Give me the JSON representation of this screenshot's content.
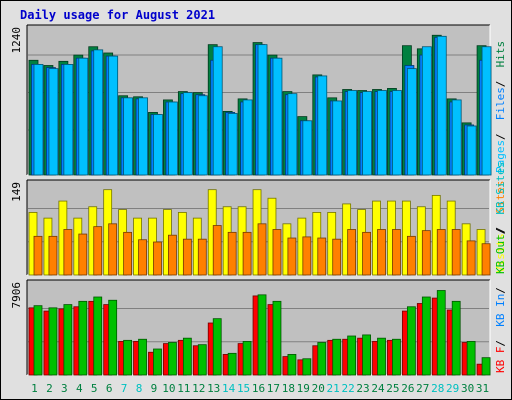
{
  "title": "Daily usage for August 2021",
  "colors": {
    "pages": "#00c0ff",
    "files": "#0080ff",
    "hits": "#008040",
    "visits": "#ffff00",
    "sites": "#ff8000",
    "kb_in": "#00c000",
    "kb_out": "#ff0000",
    "day_normal": "#008040",
    "day_weekend": "#00c0c0",
    "panel_bg": "#c0c0c0",
    "outer_bg": "#e0e0e0"
  },
  "chart_data": [
    {
      "type": "bar",
      "ymax_label": "1240",
      "legend": [
        {
          "text": "Pages",
          "color": "#00c0ff"
        },
        {
          "text": "Files",
          "color": "#0080ff"
        },
        {
          "text": "Hits",
          "color": "#008040"
        }
      ],
      "categories": [
        "1",
        "2",
        "3",
        "4",
        "5",
        "6",
        "7",
        "8",
        "9",
        "10",
        "11",
        "12",
        "13",
        "14",
        "15",
        "16",
        "17",
        "18",
        "19",
        "20",
        "21",
        "22",
        "23",
        "24",
        "25",
        "26",
        "27",
        "28",
        "29",
        "30",
        "31"
      ],
      "series": [
        {
          "name": "Hits",
          "values": [
            1100,
            1050,
            1090,
            1150,
            1230,
            1170,
            760,
            750,
            600,
            720,
            800,
            790,
            1250,
            610,
            730,
            1270,
            1150,
            800,
            560,
            960,
            740,
            820,
            810,
            820,
            830,
            1240,
            1210,
            1340,
            730,
            500,
            1240
          ]
        },
        {
          "name": "Files",
          "values": [
            1060,
            1030,
            1060,
            1120,
            1190,
            1140,
            740,
            730,
            580,
            700,
            780,
            770,
            1100,
            600,
            700,
            1250,
            1120,
            770,
            520,
            940,
            710,
            800,
            790,
            800,
            800,
            1050,
            1150,
            1320,
            700,
            480,
            1100
          ]
        },
        {
          "name": "Pages",
          "values": [
            1060,
            1020,
            1060,
            1120,
            1200,
            1140,
            740,
            740,
            580,
            700,
            790,
            760,
            1230,
            590,
            720,
            1250,
            1120,
            780,
            520,
            950,
            710,
            810,
            800,
            810,
            810,
            1020,
            1230,
            1330,
            720,
            470,
            1230
          ]
        }
      ]
    },
    {
      "type": "bar",
      "ymax_label": "149",
      "legend": [
        {
          "text": "Visits",
          "color": "#ffff00"
        },
        {
          "text": "Sites",
          "color": "#ff8000"
        }
      ],
      "categories": [
        "1",
        "2",
        "3",
        "4",
        "5",
        "6",
        "7",
        "8",
        "9",
        "10",
        "11",
        "12",
        "13",
        "14",
        "15",
        "16",
        "17",
        "18",
        "19",
        "20",
        "21",
        "22",
        "23",
        "24",
        "25",
        "26",
        "27",
        "28",
        "29",
        "30",
        "31"
      ],
      "series": [
        {
          "name": "Visits",
          "values": [
            110,
            100,
            130,
            100,
            120,
            150,
            115,
            100,
            100,
            115,
            110,
            100,
            150,
            120,
            120,
            150,
            135,
            90,
            100,
            110,
            110,
            125,
            115,
            130,
            130,
            130,
            120,
            140,
            130,
            90,
            80
          ]
        },
        {
          "name": "Sites",
          "values": [
            68,
            68,
            80,
            72,
            85,
            90,
            75,
            62,
            58,
            70,
            63,
            63,
            87,
            75,
            75,
            90,
            80,
            65,
            67,
            65,
            63,
            80,
            75,
            80,
            80,
            68,
            78,
            80,
            80,
            60,
            55
          ]
        }
      ]
    },
    {
      "type": "bar",
      "ymax_label": "7906",
      "legend": [
        {
          "text": "KB F",
          "color": "#ff0000"
        },
        {
          "text": "KB In",
          "color": "#0080ff"
        },
        {
          "text": "KB Out",
          "color": "#00c000"
        },
        {
          "text": "KB Sites",
          "color": "#00c0c0"
        }
      ],
      "categories": [
        "1",
        "2",
        "3",
        "4",
        "5",
        "6",
        "7",
        "8",
        "9",
        "10",
        "11",
        "12",
        "13",
        "14",
        "15",
        "16",
        "17",
        "18",
        "19",
        "20",
        "21",
        "22",
        "23",
        "24",
        "25",
        "26",
        "27",
        "28",
        "29",
        "30",
        "31"
      ],
      "series": [
        {
          "name": "KB F",
          "values": [
            6200,
            5900,
            6100,
            6300,
            6800,
            6500,
            3100,
            3100,
            2100,
            2900,
            3200,
            2700,
            4800,
            1900,
            2900,
            7300,
            6500,
            1700,
            1400,
            2700,
            3200,
            3300,
            3400,
            3100,
            3200,
            5900,
            6600,
            7100,
            6000,
            3000,
            1000
          ]
        },
        {
          "name": "KB Out",
          "values": [
            6400,
            6200,
            6500,
            6800,
            7200,
            6900,
            3200,
            3300,
            2400,
            3000,
            3400,
            2800,
            5200,
            2000,
            3100,
            7400,
            6800,
            1900,
            1500,
            3000,
            3300,
            3600,
            3700,
            3400,
            3300,
            6300,
            7200,
            7800,
            6800,
            3100,
            1600
          ]
        }
      ]
    }
  ],
  "weekend_days": [
    7,
    8,
    14,
    15,
    21,
    22,
    28,
    29
  ]
}
